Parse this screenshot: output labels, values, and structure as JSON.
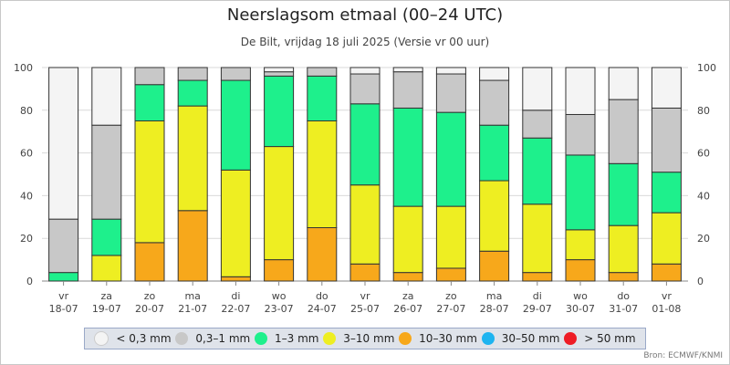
{
  "chart_data": {
    "type": "bar",
    "stacked": true,
    "title": "Neerslagsom etmaal (00–24 UTC)",
    "subtitle": "De Bilt, vrijdag 18 juli 2025 (Versie vr 00 uur)",
    "ylim": [
      0,
      100
    ],
    "yticks": [
      "0",
      "20",
      "40",
      "60",
      "80",
      "100"
    ],
    "grid": true,
    "legend_position": "bottom",
    "categories": [
      {
        "day": "vr",
        "date": "18-07"
      },
      {
        "day": "za",
        "date": "19-07"
      },
      {
        "day": "zo",
        "date": "20-07"
      },
      {
        "day": "ma",
        "date": "21-07"
      },
      {
        "day": "di",
        "date": "22-07"
      },
      {
        "day": "wo",
        "date": "23-07"
      },
      {
        "day": "do",
        "date": "24-07"
      },
      {
        "day": "vr",
        "date": "25-07"
      },
      {
        "day": "za",
        "date": "26-07"
      },
      {
        "day": "zo",
        "date": "27-07"
      },
      {
        "day": "ma",
        "date": "28-07"
      },
      {
        "day": "di",
        "date": "29-07"
      },
      {
        "day": "wo",
        "date": "30-07"
      },
      {
        "day": "do",
        "date": "31-07"
      },
      {
        "day": "vr",
        "date": "01-08"
      }
    ],
    "series": [
      {
        "name": "> 50 mm",
        "color": "#ee1c25",
        "values": [
          0,
          0,
          0,
          0,
          0,
          0,
          0,
          0,
          0,
          0,
          0,
          0,
          0,
          0,
          0
        ]
      },
      {
        "name": "30–50 mm",
        "color": "#1eb4f0",
        "values": [
          0,
          0,
          0,
          0,
          0,
          0,
          0,
          0,
          0,
          0,
          0,
          0,
          0,
          0,
          0
        ]
      },
      {
        "name": "10–30 mm",
        "color": "#f7a81b",
        "values": [
          0,
          0,
          18,
          33,
          2,
          10,
          25,
          8,
          4,
          6,
          14,
          4,
          10,
          4,
          8
        ]
      },
      {
        "name": "3–10 mm",
        "color": "#eeee22",
        "values": [
          0,
          12,
          57,
          49,
          50,
          53,
          50,
          37,
          31,
          29,
          33,
          32,
          14,
          22,
          24
        ]
      },
      {
        "name": "1–3 mm",
        "color": "#1ef08c",
        "values": [
          4,
          17,
          17,
          12,
          42,
          33,
          21,
          38,
          46,
          44,
          26,
          31,
          35,
          29,
          19
        ]
      },
      {
        "name": "0,3–1 mm",
        "color": "#c8c8c8",
        "values": [
          25,
          44,
          8,
          6,
          6,
          2,
          4,
          14,
          17,
          18,
          21,
          13,
          19,
          30,
          30
        ]
      },
      {
        "name": "< 0,3 mm",
        "color": "#f4f4f4",
        "values": [
          71,
          27,
          0,
          0,
          0,
          2,
          0,
          3,
          2,
          3,
          6,
          20,
          22,
          15,
          19
        ]
      }
    ],
    "source": "Bron: ECMWF/KNMI"
  }
}
